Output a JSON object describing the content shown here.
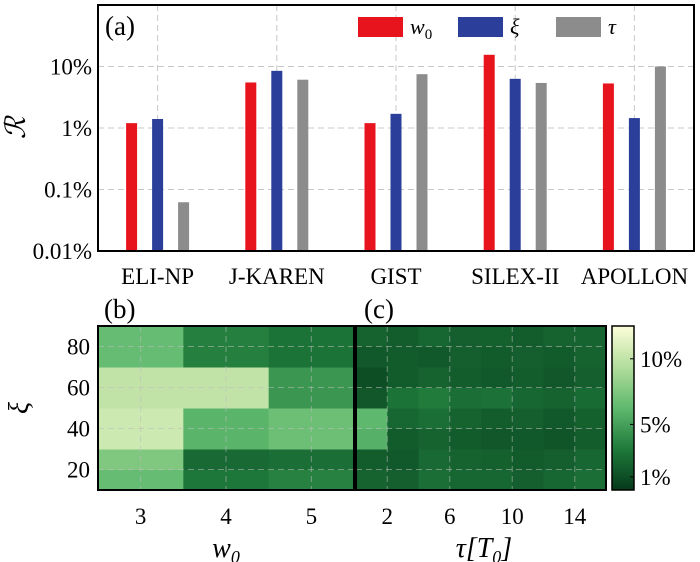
{
  "chart_data": [
    {
      "type": "bar",
      "panel_label": "(a)",
      "ylabel": "ℛ",
      "yscale": "log",
      "ylim": [
        0.01,
        100
      ],
      "yticks": [
        "0.01%",
        "0.1%",
        "1%",
        "10%"
      ],
      "categories": [
        "ELI-NP",
        "J-KAREN",
        "GIST",
        "SILEX-II",
        "APOLLON"
      ],
      "legend_position": "top-right",
      "grid": true,
      "series": [
        {
          "name": "w0",
          "label_main": "w",
          "label_sub": "0",
          "color": "#e8141d",
          "values": [
            1.2,
            5.5,
            1.2,
            15.5,
            5.3
          ]
        },
        {
          "name": "ξ",
          "label_main": "ξ",
          "label_sub": "",
          "color": "#2b3f9a",
          "values": [
            1.4,
            8.5,
            1.7,
            6.3,
            1.45
          ]
        },
        {
          "name": "τ",
          "label_main": "τ",
          "label_sub": "",
          "color": "#8c8c8c",
          "values": [
            0.062,
            6.1,
            7.5,
            5.4,
            10.0
          ]
        }
      ]
    },
    {
      "type": "heatmap",
      "panel_label": "(b)",
      "xlabel_main": "w",
      "xlabel_sub": "0",
      "ylabel": "ξ",
      "xlim": [
        2.5,
        5.5
      ],
      "ylim": [
        10,
        90
      ],
      "xticks": [
        "3",
        "4",
        "5"
      ],
      "yticks": [
        "20",
        "40",
        "60",
        "80"
      ],
      "x": [
        2.625,
        2.875,
        3.125,
        3.375,
        3.625,
        3.875,
        4.125,
        4.375,
        4.625,
        4.875,
        5.125,
        5.375
      ],
      "y": [
        15,
        25,
        35,
        45,
        55,
        65,
        75,
        85
      ],
      "values": [
        [
          6.5,
          6.5,
          6.5,
          6.5,
          3.0,
          3.0,
          3.0,
          3.0,
          3.5,
          3.5,
          3.5,
          3.5
        ],
        [
          7.5,
          7.5,
          7.5,
          7.5,
          2.3,
          2.3,
          2.3,
          2.3,
          2.6,
          2.6,
          2.6,
          2.6
        ],
        [
          10.5,
          10.5,
          10.5,
          10.5,
          6.0,
          6.0,
          6.0,
          6.0,
          6.8,
          6.8,
          6.8,
          6.8
        ],
        [
          10.5,
          10.5,
          10.5,
          10.5,
          6.0,
          6.0,
          6.0,
          6.0,
          6.8,
          6.8,
          6.8,
          6.8
        ],
        [
          10.0,
          10.0,
          10.0,
          10.0,
          10.0,
          10.0,
          10.0,
          10.0,
          4.5,
          4.5,
          4.5,
          4.5
        ],
        [
          10.0,
          10.0,
          10.0,
          10.0,
          10.0,
          10.0,
          10.0,
          10.0,
          4.5,
          4.5,
          4.5,
          4.5
        ],
        [
          6.5,
          6.5,
          6.5,
          6.5,
          3.4,
          3.4,
          3.4,
          3.4,
          2.8,
          2.8,
          2.8,
          2.8
        ],
        [
          6.5,
          6.5,
          6.5,
          6.5,
          3.4,
          3.4,
          3.4,
          3.4,
          2.8,
          2.8,
          2.8,
          2.8
        ]
      ]
    },
    {
      "type": "heatmap",
      "panel_label": "(c)",
      "xlabel_main": "τ[T",
      "xlabel_sub": "0",
      "xlabel_end": "]",
      "xlim": [
        0,
        16
      ],
      "ylim": [
        10,
        90
      ],
      "xticks": [
        "2",
        "6",
        "10",
        "14"
      ],
      "x": [
        1,
        3,
        5,
        7,
        9,
        11,
        13,
        15
      ],
      "y": [
        15,
        25,
        35,
        45,
        55,
        65,
        75,
        85
      ],
      "values": [
        [
          2.0,
          1.8,
          2.6,
          2.2,
          2.2,
          1.8,
          2.2,
          2.6
        ],
        [
          1.7,
          1.5,
          2.3,
          2.0,
          1.9,
          1.6,
          1.8,
          2.2
        ],
        [
          5.8,
          1.6,
          2.0,
          1.6,
          1.4,
          1.5,
          1.3,
          1.7
        ],
        [
          6.2,
          2.2,
          2.6,
          2.0,
          1.7,
          1.8,
          1.5,
          1.9
        ],
        [
          1.4,
          2.8,
          3.2,
          2.6,
          2.7,
          2.2,
          2.0,
          2.4
        ],
        [
          1.0,
          1.6,
          2.0,
          1.7,
          1.5,
          1.7,
          1.4,
          1.8
        ],
        [
          1.5,
          1.6,
          1.5,
          1.8,
          1.6,
          1.8,
          1.6,
          2.0
        ],
        [
          2.0,
          1.7,
          2.2,
          1.8,
          1.9,
          1.7,
          2.0,
          2.1
        ]
      ]
    }
  ],
  "colorbar": {
    "ticks": [
      "10%",
      "5%",
      "1%"
    ],
    "tick_values": [
      10,
      5,
      1
    ],
    "range": [
      0,
      12.5
    ],
    "colors": [
      "#053a1b",
      "#1f7a3b",
      "#5fb96e",
      "#b2dd9c",
      "#fdfdd9"
    ]
  }
}
